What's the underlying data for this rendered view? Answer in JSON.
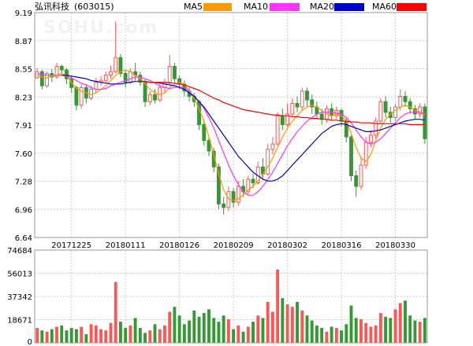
{
  "header": {
    "title": "弘讯科技",
    "code": "(603015)"
  },
  "legend": [
    {
      "name": "MA5",
      "color": "#ff9900"
    },
    {
      "name": "MA10",
      "color": "#ff33ff"
    },
    {
      "name": "MA20",
      "color": "#0000cc"
    },
    {
      "name": "MA60",
      "color": "#ff0000"
    }
  ],
  "watermark": "SOHU.com",
  "colors": {
    "up": "#ff5555",
    "down": "#339933",
    "grid": "#cccccc"
  },
  "chart_data": [
    {
      "type": "candlestick",
      "ylim": [
        6.64,
        9.19
      ],
      "y_ticks": [
        "9.19",
        "8.87",
        "8.55",
        "8.23",
        "7.91",
        "7.60",
        "7.28",
        "6.96",
        "6.64"
      ],
      "x_labels": [
        "20171225",
        "20180111",
        "20180126",
        "20180209",
        "20180302",
        "20180316",
        "20180330"
      ],
      "x_label_index": [
        7,
        18,
        29,
        40,
        51,
        62,
        73
      ],
      "grid": true,
      "candles": [
        [
          8.45,
          8.52,
          8.44,
          8.56
        ],
        [
          8.52,
          8.36,
          8.32,
          8.54
        ],
        [
          8.36,
          8.5,
          8.34,
          8.52
        ],
        [
          8.5,
          8.46,
          8.4,
          8.55
        ],
        [
          8.46,
          8.58,
          8.44,
          8.62
        ],
        [
          8.58,
          8.54,
          8.49,
          8.6
        ],
        [
          8.54,
          8.44,
          8.38,
          8.56
        ],
        [
          8.44,
          8.34,
          8.28,
          8.47
        ],
        [
          8.34,
          8.14,
          8.08,
          8.36
        ],
        [
          8.14,
          8.34,
          8.1,
          8.38
        ],
        [
          8.34,
          8.22,
          8.16,
          8.38
        ],
        [
          8.22,
          8.32,
          8.2,
          8.36
        ],
        [
          8.32,
          8.4,
          8.28,
          8.45
        ],
        [
          8.4,
          8.42,
          8.36,
          8.47
        ],
        [
          8.42,
          8.48,
          8.4,
          8.52
        ],
        [
          8.48,
          8.52,
          8.44,
          8.59
        ],
        [
          8.52,
          8.68,
          8.5,
          9.09
        ],
        [
          8.68,
          8.5,
          8.46,
          8.72
        ],
        [
          8.5,
          8.4,
          8.34,
          8.54
        ],
        [
          8.4,
          8.52,
          8.38,
          8.56
        ],
        [
          8.52,
          8.48,
          8.42,
          8.62
        ],
        [
          8.48,
          8.4,
          8.36,
          8.52
        ],
        [
          8.4,
          8.18,
          8.12,
          8.44
        ],
        [
          8.18,
          8.26,
          8.14,
          8.3
        ],
        [
          8.26,
          8.2,
          8.16,
          8.32
        ],
        [
          8.2,
          8.34,
          8.18,
          8.38
        ],
        [
          8.34,
          8.4,
          8.28,
          8.44
        ],
        [
          8.4,
          8.58,
          8.38,
          8.71
        ],
        [
          8.58,
          8.44,
          8.4,
          8.62
        ],
        [
          8.44,
          8.38,
          8.32,
          8.48
        ],
        [
          8.38,
          8.3,
          8.24,
          8.42
        ],
        [
          8.3,
          8.24,
          8.18,
          8.34
        ],
        [
          8.24,
          8.18,
          8.12,
          8.28
        ],
        [
          8.18,
          7.92,
          7.86,
          8.2
        ],
        [
          7.92,
          7.74,
          7.68,
          7.98
        ],
        [
          7.74,
          7.62,
          7.56,
          7.78
        ],
        [
          7.62,
          7.44,
          7.38,
          7.66
        ],
        [
          7.44,
          7.02,
          6.96,
          7.48
        ],
        [
          7.02,
          6.98,
          6.9,
          7.1
        ],
        [
          6.98,
          7.16,
          6.94,
          7.22
        ],
        [
          7.16,
          7.04,
          6.98,
          7.2
        ],
        [
          7.04,
          7.22,
          7.0,
          7.28
        ],
        [
          7.22,
          7.16,
          7.1,
          7.3
        ],
        [
          7.16,
          7.3,
          7.12,
          7.34
        ],
        [
          7.3,
          7.26,
          7.2,
          7.36
        ],
        [
          7.26,
          7.44,
          7.24,
          7.5
        ],
        [
          7.44,
          7.36,
          7.3,
          7.54
        ],
        [
          7.36,
          7.64,
          7.34,
          7.7
        ],
        [
          7.64,
          7.7,
          7.58,
          7.78
        ],
        [
          7.7,
          8.02,
          7.68,
          8.06
        ],
        [
          8.02,
          7.92,
          7.86,
          8.1
        ],
        [
          7.92,
          8.04,
          7.9,
          8.16
        ],
        [
          8.04,
          8.16,
          8.0,
          8.22
        ],
        [
          8.16,
          8.12,
          8.06,
          8.24
        ],
        [
          8.12,
          8.3,
          8.08,
          8.34
        ],
        [
          8.3,
          8.2,
          8.12,
          8.34
        ],
        [
          8.2,
          8.12,
          8.04,
          8.26
        ],
        [
          8.12,
          8.04,
          7.98,
          8.18
        ],
        [
          8.04,
          7.98,
          7.92,
          8.1
        ],
        [
          7.98,
          8.1,
          7.94,
          8.14
        ],
        [
          8.1,
          8.02,
          7.96,
          8.16
        ],
        [
          8.02,
          8.08,
          7.98,
          8.12
        ],
        [
          8.08,
          7.96,
          7.9,
          8.1
        ],
        [
          7.96,
          7.78,
          7.72,
          8.0
        ],
        [
          7.78,
          7.34,
          7.28,
          7.8
        ],
        [
          7.34,
          7.22,
          7.1,
          7.4
        ],
        [
          7.22,
          7.46,
          7.18,
          7.56
        ],
        [
          7.46,
          7.72,
          7.42,
          7.78
        ],
        [
          7.72,
          7.8,
          7.66,
          7.86
        ],
        [
          7.8,
          7.96,
          7.76,
          8.0
        ],
        [
          7.96,
          8.18,
          7.92,
          8.22
        ],
        [
          8.18,
          8.06,
          8.0,
          8.24
        ],
        [
          8.06,
          8.0,
          7.94,
          8.12
        ],
        [
          8.0,
          8.12,
          7.96,
          8.16
        ],
        [
          8.12,
          8.24,
          8.08,
          8.32
        ],
        [
          8.24,
          8.18,
          8.12,
          8.3
        ],
        [
          8.18,
          8.1,
          8.04,
          8.22
        ],
        [
          8.1,
          8.04,
          7.98,
          8.14
        ],
        [
          8.04,
          8.12,
          8.0,
          8.16
        ],
        [
          8.12,
          7.76,
          7.7,
          8.16
        ]
      ],
      "ma_lines": {
        "MA5": [
          8.48,
          8.46,
          8.45,
          8.47,
          8.48,
          8.5,
          8.48,
          8.4,
          8.33,
          8.3,
          8.28,
          8.26,
          8.28,
          8.32,
          8.36,
          8.42,
          8.48,
          8.52,
          8.54,
          8.52,
          8.48,
          8.44,
          8.38,
          8.32,
          8.28,
          8.26,
          8.28,
          8.34,
          8.38,
          8.4,
          8.38,
          8.3,
          8.22,
          8.1,
          7.96,
          7.78,
          7.58,
          7.36,
          7.18,
          7.08,
          7.06,
          7.08,
          7.12,
          7.18,
          7.22,
          7.28,
          7.36,
          7.44,
          7.54,
          7.66,
          7.78,
          7.88,
          7.96,
          8.02,
          8.08,
          8.12,
          8.14,
          8.12,
          8.08,
          8.04,
          8.02,
          8.04,
          8.02,
          7.96,
          7.82,
          7.66,
          7.54,
          7.5,
          7.58,
          7.74,
          7.88,
          7.98,
          8.04,
          8.08,
          8.12,
          8.14,
          8.12,
          8.08,
          8.06,
          8.02
        ],
        "MA10": [
          8.5,
          8.49,
          8.48,
          8.48,
          8.48,
          8.48,
          8.47,
          8.45,
          8.42,
          8.39,
          8.37,
          8.34,
          8.32,
          8.32,
          8.33,
          8.36,
          8.38,
          8.4,
          8.42,
          8.44,
          8.46,
          8.46,
          8.44,
          8.42,
          8.39,
          8.36,
          8.34,
          8.33,
          8.34,
          8.35,
          8.34,
          8.3,
          8.24,
          8.18,
          8.1,
          8.0,
          7.88,
          7.74,
          7.6,
          7.46,
          7.34,
          7.24,
          7.16,
          7.12,
          7.12,
          7.16,
          7.22,
          7.3,
          7.38,
          7.48,
          7.58,
          7.68,
          7.76,
          7.84,
          7.9,
          7.96,
          8.0,
          8.04,
          8.06,
          8.06,
          8.06,
          8.05,
          8.04,
          8.0,
          7.94,
          7.86,
          7.78,
          7.72,
          7.7,
          7.72,
          7.76,
          7.82,
          7.88,
          7.94,
          8.0,
          8.04,
          8.06,
          8.06,
          8.06,
          8.04
        ],
        "MA20": [
          null,
          null,
          null,
          null,
          null,
          8.48,
          8.48,
          8.47,
          8.46,
          8.45,
          8.44,
          8.42,
          8.41,
          8.4,
          8.39,
          8.38,
          8.38,
          8.38,
          8.39,
          8.4,
          8.41,
          8.41,
          8.41,
          8.4,
          8.4,
          8.39,
          8.38,
          8.37,
          8.36,
          8.34,
          8.32,
          8.28,
          8.24,
          8.18,
          8.12,
          8.04,
          7.96,
          7.88,
          7.8,
          7.72,
          7.64,
          7.56,
          7.5,
          7.44,
          7.38,
          7.34,
          7.3,
          7.28,
          7.28,
          7.3,
          7.34,
          7.4,
          7.46,
          7.52,
          7.58,
          7.64,
          7.7,
          7.76,
          7.82,
          7.86,
          7.9,
          7.92,
          7.93,
          7.92,
          7.9,
          7.88,
          7.86,
          7.84,
          7.84,
          7.85,
          7.86,
          7.88,
          7.9,
          7.92,
          7.94,
          7.96,
          7.97,
          7.98,
          7.98,
          7.97
        ],
        "MA60": [
          null,
          null,
          null,
          null,
          null,
          null,
          null,
          null,
          null,
          null,
          null,
          null,
          null,
          null,
          null,
          null,
          null,
          null,
          null,
          null,
          8.41,
          8.41,
          8.41,
          8.4,
          8.4,
          8.4,
          8.4,
          8.39,
          8.39,
          8.38,
          8.37,
          8.35,
          8.33,
          8.31,
          8.28,
          8.25,
          8.22,
          8.2,
          8.17,
          8.15,
          8.13,
          8.11,
          8.09,
          8.08,
          8.07,
          8.06,
          8.05,
          8.04,
          8.03,
          8.03,
          8.02,
          8.02,
          8.01,
          8.01,
          8.0,
          8.0,
          7.99,
          7.99,
          7.98,
          7.98,
          7.97,
          7.97,
          7.96,
          7.96,
          7.95,
          7.95,
          7.94,
          7.94,
          7.94,
          7.93,
          7.93,
          7.93,
          7.93,
          7.93,
          7.93,
          7.93,
          7.92,
          7.92,
          7.92,
          7.92
        ]
      }
    },
    {
      "type": "bar",
      "ylim": [
        0,
        74684
      ],
      "y_ticks": [
        "74684",
        "56013",
        "37342",
        "18671",
        "0"
      ],
      "volumes": [
        12000,
        10000,
        9000,
        11000,
        13000,
        14000,
        10000,
        12000,
        11000,
        13000,
        7000,
        15000,
        14000,
        11000,
        10000,
        16000,
        49000,
        17000,
        12000,
        14000,
        20000,
        12000,
        8000,
        10000,
        15000,
        11000,
        14000,
        25000,
        29000,
        22000,
        15000,
        18000,
        26000,
        21000,
        24000,
        27000,
        20000,
        17000,
        22000,
        19000,
        11000,
        14000,
        9000,
        13000,
        17000,
        22000,
        20000,
        33000,
        25000,
        59000,
        36000,
        31000,
        29000,
        33000,
        26000,
        22000,
        18000,
        14000,
        12000,
        9000,
        13000,
        12000,
        10000,
        15000,
        30000,
        20000,
        19000,
        16000,
        13000,
        14000,
        24000,
        21000,
        20000,
        27000,
        32000,
        34000,
        22000,
        18000,
        17000,
        20000
      ]
    }
  ]
}
